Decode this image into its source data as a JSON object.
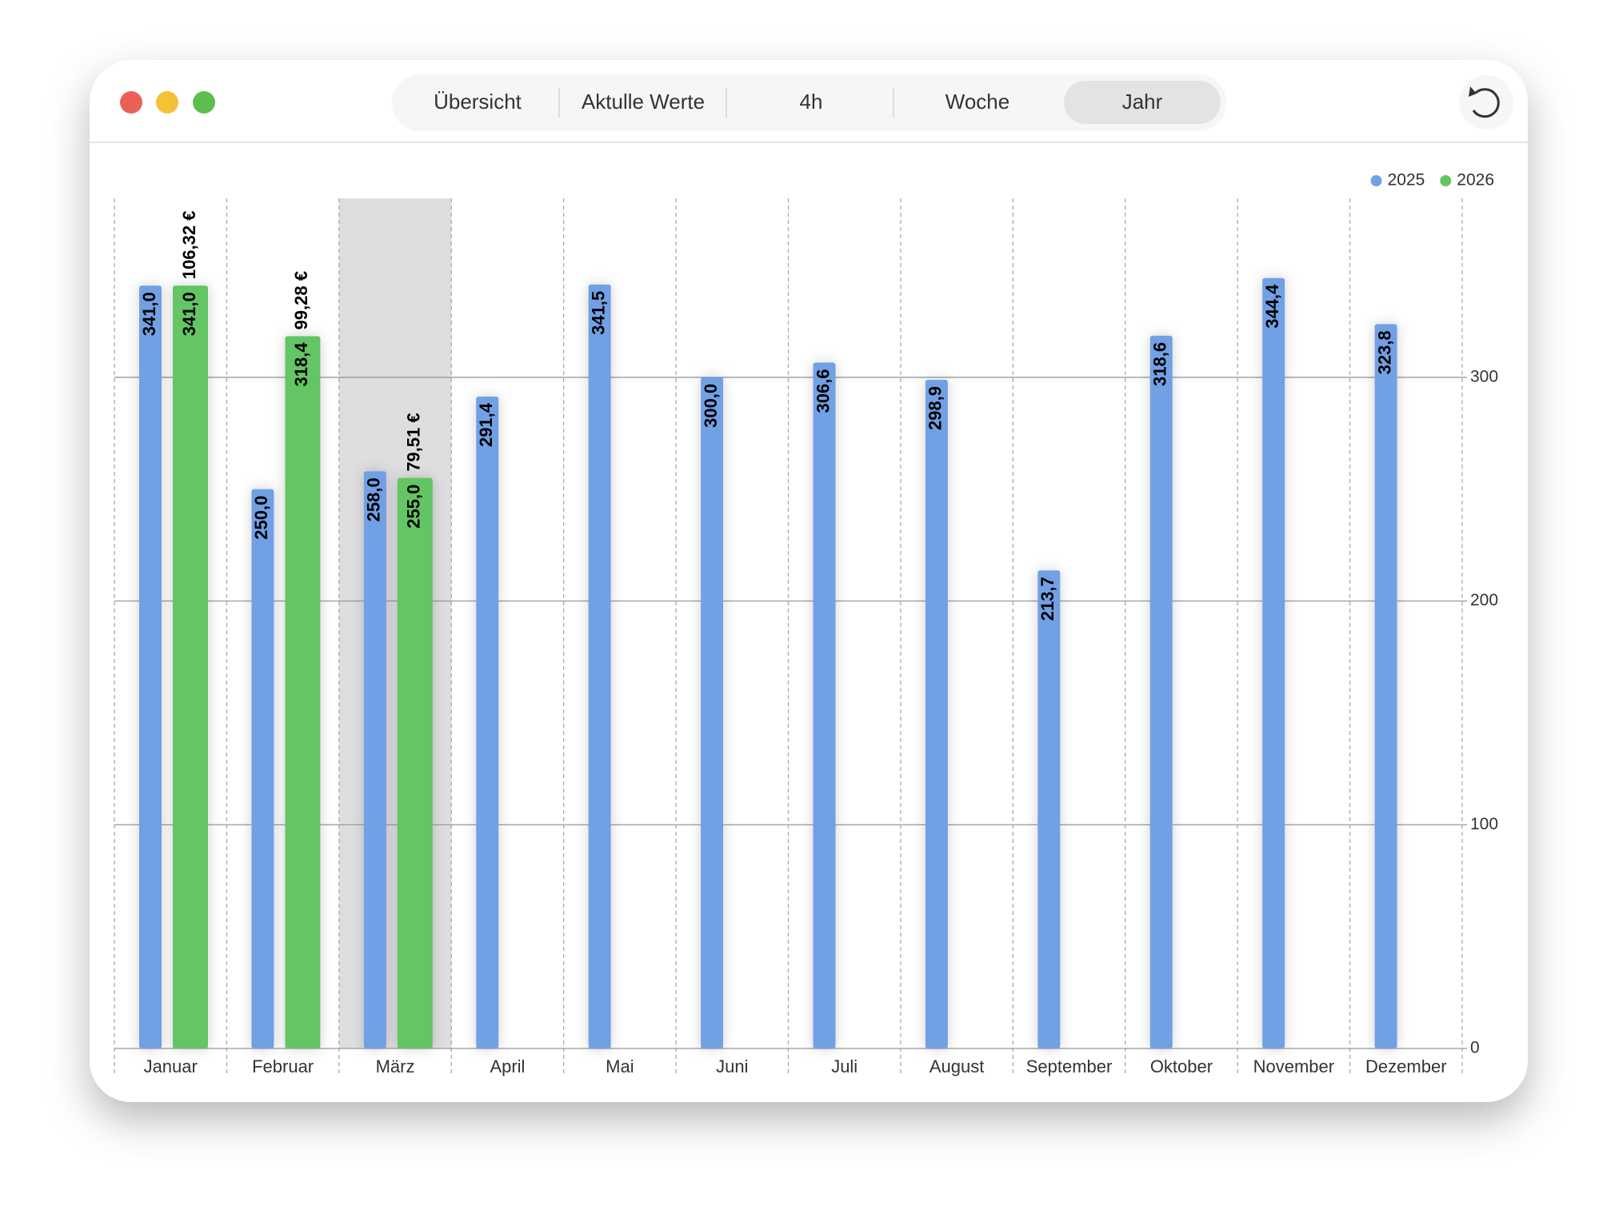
{
  "toolbar": {
    "tabs": [
      "Übersicht",
      "Aktulle Werte",
      "4h",
      "Woche",
      "Jahr"
    ],
    "selected": 4
  },
  "chart_data": {
    "type": "bar",
    "categories": [
      "Januar",
      "Februar",
      "März",
      "April",
      "Mai",
      "Juni",
      "Juli",
      "August",
      "September",
      "Oktober",
      "November",
      "Dezember"
    ],
    "series": [
      {
        "name": "2025",
        "color": "#72a0e5",
        "values": [
          341.0,
          250.0,
          258.0,
          291.4,
          341.5,
          300.0,
          306.6,
          298.9,
          213.7,
          318.6,
          344.4,
          323.8
        ],
        "value_labels": [
          "341,0",
          "250,0",
          "258,0",
          "291,4",
          "341,5",
          "300,0",
          "306,6",
          "298,9",
          "213,7",
          "318,6",
          "344,4",
          "323,8"
        ]
      },
      {
        "name": "2026",
        "color": "#63c563",
        "values": [
          341.0,
          318.4,
          255.0,
          null,
          null,
          null,
          null,
          null,
          null,
          null,
          null,
          null
        ],
        "value_labels": [
          "341,0",
          "318,4",
          "255,0",
          null,
          null,
          null,
          null,
          null,
          null,
          null,
          null,
          null
        ],
        "costs": [
          106.32,
          99.28,
          79.51
        ],
        "cost_labels": [
          "106,32 €",
          "99,28 €",
          "79,51 €"
        ]
      }
    ],
    "highlighted": 2,
    "ylim": [
      0,
      380
    ],
    "yticks": [
      0,
      100,
      200,
      300
    ],
    "grid": true,
    "legend": "top-right"
  }
}
